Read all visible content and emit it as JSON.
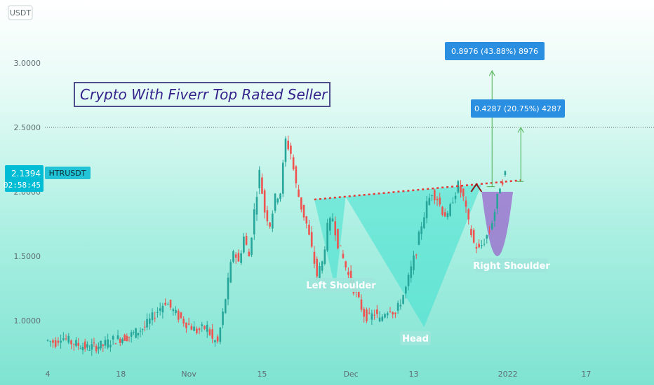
{
  "currency_badge": "USDT",
  "chart_data": {
    "type": "candlestick",
    "title": "Crypto With Fiverr Top Rated Seller",
    "ylim": [
      0.8,
      3.2
    ],
    "y_ticks": [
      1.0,
      1.5,
      2.0,
      2.5,
      3.0
    ],
    "y_tick_labels": [
      "1.0000",
      "1.5000",
      "2.0000",
      "2.5000",
      "3.0000"
    ],
    "x_range_days": [
      0,
      112
    ],
    "x_ticks": [
      {
        "day": 0,
        "label": "4"
      },
      {
        "day": 14,
        "label": "18"
      },
      {
        "day": 27,
        "label": "Nov"
      },
      {
        "day": 41,
        "label": "15"
      },
      {
        "day": 58,
        "label": "Dec"
      },
      {
        "day": 70,
        "label": "13"
      },
      {
        "day": 88,
        "label": "2022"
      },
      {
        "day": 103,
        "label": "17"
      }
    ],
    "symbol": "HTRUSDT",
    "last_price": "2.1394",
    "countdown": "02:58:45",
    "resistance_level": 2.5,
    "price_path": [
      [
        0,
        0.85
      ],
      [
        2,
        0.83
      ],
      [
        3,
        0.88
      ],
      [
        5,
        0.83
      ],
      [
        8,
        0.79
      ],
      [
        11,
        0.81
      ],
      [
        13,
        0.85
      ],
      [
        16,
        0.88
      ],
      [
        19,
        0.95
      ],
      [
        21,
        1.05
      ],
      [
        23,
        1.15
      ],
      [
        25,
        1.05
      ],
      [
        27,
        0.98
      ],
      [
        29,
        0.92
      ],
      [
        31,
        0.95
      ],
      [
        32,
        0.85
      ],
      [
        33,
        0.83
      ],
      [
        34,
        1.05
      ],
      [
        35,
        1.3
      ],
      [
        36,
        1.55
      ],
      [
        37,
        1.45
      ],
      [
        38,
        1.65
      ],
      [
        39,
        1.5
      ],
      [
        40,
        1.85
      ],
      [
        41,
        2.15
      ],
      [
        42,
        1.85
      ],
      [
        43,
        1.75
      ],
      [
        44,
        1.95
      ],
      [
        45,
        2.0
      ],
      [
        46,
        2.4
      ],
      [
        47,
        2.3
      ],
      [
        48,
        2.05
      ],
      [
        49,
        1.88
      ],
      [
        50,
        1.75
      ],
      [
        51,
        1.55
      ],
      [
        52,
        1.35
      ],
      [
        53,
        1.45
      ],
      [
        54,
        1.72
      ],
      [
        55,
        1.8
      ],
      [
        56,
        1.6
      ],
      [
        57,
        1.48
      ],
      [
        58,
        1.35
      ],
      [
        59,
        1.25
      ],
      [
        60,
        1.15
      ],
      [
        61,
        1.05
      ],
      [
        62,
        1.02
      ],
      [
        63,
        1.06
      ],
      [
        64,
        1.0
      ],
      [
        65,
        1.07
      ],
      [
        66,
        1.1
      ],
      [
        67,
        1.05
      ],
      [
        68,
        1.15
      ],
      [
        69,
        1.25
      ],
      [
        70,
        1.4
      ],
      [
        71,
        1.55
      ],
      [
        72,
        1.75
      ],
      [
        73,
        1.9
      ],
      [
        74,
        2.0
      ],
      [
        75,
        1.95
      ],
      [
        76,
        1.85
      ],
      [
        77,
        1.8
      ],
      [
        78,
        1.95
      ],
      [
        79,
        2.05
      ],
      [
        80,
        1.95
      ],
      [
        81,
        1.75
      ],
      [
        82,
        1.6
      ],
      [
        83,
        1.55
      ],
      [
        84,
        1.62
      ],
      [
        85,
        1.7
      ],
      [
        86,
        1.85
      ],
      [
        87,
        2.05
      ],
      [
        88,
        2.14
      ]
    ],
    "pattern": {
      "name": "inverse head and shoulders",
      "labels": [
        "Left Shoulder",
        "Head",
        "Right Shoulder"
      ],
      "neckline": [
        [
          51,
          1.94
        ],
        [
          89,
          2.08
        ]
      ]
    },
    "targets": [
      {
        "label": "0.8976 (43.88%) 8976"
      },
      {
        "label": "0.4287 (20.75%) 4287"
      }
    ],
    "colors": {
      "up": "#26a69a",
      "down": "#ef5350",
      "title_text": "#35238c",
      "title_border": "#4e4e8c",
      "callout_bg": "#2a8fe0",
      "pattern_fill": "#40e0d0",
      "cup_fill": "#9966cc",
      "neckline": "#e53935",
      "target_arrow": "#4caf50",
      "price_badge": "#00bcd4"
    }
  }
}
